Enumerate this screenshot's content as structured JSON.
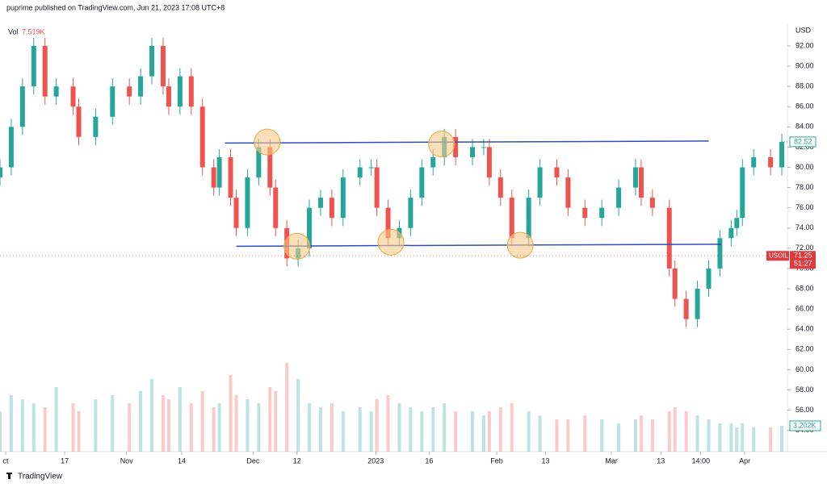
{
  "chart_data": {
    "type": "candlestick",
    "header": "puprime published on TradingView.com, Jun 21, 2023 17:08 UTC+8",
    "currency": "USD",
    "footer": "TradingView",
    "volume_title": "Vol",
    "volume_readout": "7.519K",
    "volume_last_label": "3.202K",
    "x": [
      0,
      2,
      4,
      6,
      8,
      10,
      13,
      14,
      17,
      20,
      23,
      25,
      27,
      29,
      30,
      32,
      34,
      36,
      38,
      39,
      41,
      42,
      44,
      46,
      48,
      49,
      51,
      53,
      55,
      57,
      59,
      61,
      64,
      66,
      67,
      69,
      71,
      73,
      75,
      77,
      79,
      81,
      84,
      86,
      87,
      89,
      91,
      94,
      96,
      99,
      101,
      104,
      107,
      110,
      113,
      114,
      116,
      119,
      120,
      122,
      124,
      126,
      128,
      130,
      131,
      132,
      134,
      137,
      139
    ],
    "open": [
      79,
      80,
      84,
      88,
      92,
      87,
      88,
      86,
      83,
      85,
      88,
      87,
      89,
      92,
      88,
      86,
      89,
      86,
      80,
      78,
      81,
      77,
      74,
      79,
      82,
      78,
      74,
      71,
      72,
      76,
      77,
      75,
      79,
      80,
      80,
      76,
      73,
      74,
      77,
      80,
      81,
      83,
      81,
      82,
      82,
      79,
      77,
      73,
      77,
      80,
      79,
      76,
      75,
      76,
      78,
      80,
      77,
      76,
      70,
      67,
      65,
      68,
      70,
      73,
      74,
      75,
      80,
      81,
      80
    ],
    "high": [
      80.8,
      84.8,
      88.8,
      92.8,
      92.8,
      88.8,
      88.8,
      86.8,
      85.8,
      88.8,
      88.8,
      89.8,
      92.8,
      92.8,
      88.8,
      89.8,
      89.8,
      86.8,
      80.8,
      81.8,
      81.8,
      77.8,
      79.8,
      82.8,
      82.8,
      78.8,
      74.8,
      72.8,
      76.8,
      77.8,
      77.8,
      79.8,
      80.8,
      80.8,
      80.8,
      76.8,
      74.8,
      77.8,
      80.8,
      81.8,
      83.8,
      83.8,
      82.8,
      82.8,
      82.8,
      79.8,
      77.8,
      77.8,
      80.8,
      80.8,
      79.8,
      76.8,
      76.8,
      78.8,
      80.8,
      80.8,
      77.8,
      76.8,
      70.8,
      67.8,
      68.8,
      70.8,
      73.8,
      74.8,
      75.8,
      80.8,
      81.8,
      81.8,
      83.32
    ],
    "low": [
      78.2,
      79.2,
      83.2,
      87.2,
      86.2,
      86.2,
      85.2,
      82.2,
      82.2,
      84.2,
      86.2,
      86.2,
      88.2,
      87.2,
      85.2,
      85.2,
      85.2,
      79.2,
      77.2,
      77.2,
      76.2,
      73.2,
      73.2,
      78.2,
      77.2,
      73.2,
      70.2,
      70.2,
      71.2,
      75.2,
      74.2,
      74.2,
      78.2,
      79.2,
      75.2,
      72.2,
      72.2,
      73.2,
      76.2,
      79.2,
      80.2,
      80.2,
      80.2,
      81.2,
      78.2,
      76.2,
      72.2,
      72.2,
      76.2,
      78.2,
      75.2,
      74.2,
      74.2,
      75.2,
      77.2,
      76.2,
      75.2,
      69.2,
      66.2,
      64.2,
      64.2,
      67.2,
      69.2,
      72.2,
      73.2,
      74.2,
      79.2,
      79.2,
      79.2
    ],
    "close": [
      80,
      84,
      88,
      92,
      87,
      88,
      86,
      83,
      85,
      88,
      87,
      89,
      92,
      88,
      86,
      89,
      86,
      80,
      78,
      81,
      77,
      74,
      79,
      82,
      78,
      74,
      71,
      72,
      76,
      77,
      75,
      79,
      80,
      80,
      76,
      73,
      74,
      77,
      80,
      81,
      83,
      81,
      82,
      82,
      79,
      77,
      73,
      77,
      80,
      79,
      76,
      75,
      76,
      78,
      80,
      77,
      76,
      70,
      67,
      65,
      68,
      70,
      73,
      74,
      75,
      80,
      81,
      80,
      82.52
    ],
    "volume": [
      5000,
      7000,
      6500,
      6000,
      5500,
      8000,
      6000,
      5000,
      6500,
      7000,
      6000,
      7500,
      9000,
      7000,
      6500,
      8000,
      6000,
      7500,
      5500,
      6000,
      9500,
      7000,
      6500,
      6000,
      8000,
      7500,
      11000,
      9000,
      6000,
      5500,
      6000,
      5000,
      5500,
      5000,
      6500,
      7000,
      6000,
      5500,
      5000,
      5500,
      6000,
      5000,
      5000,
      4500,
      5000,
      5500,
      6000,
      5000,
      4500,
      4000,
      4000,
      4500,
      4000,
      3500,
      4000,
      4500,
      4000,
      5000,
      5500,
      5000,
      4500,
      4000,
      3500,
      3500,
      3000,
      3500,
      3000,
      3000,
      3202
    ],
    "vlim": [
      0,
      20000
    ],
    "up_color": "#26a69a",
    "down_color": "#ef5350",
    "xlim": [
      0,
      140
    ],
    "ylim": [
      51.9,
      93.75
    ],
    "xticks": [
      {
        "value": 1,
        "label": "ct"
      },
      {
        "value": 11.5,
        "label": "17"
      },
      {
        "value": 22.5,
        "label": "Nov"
      },
      {
        "value": 32.3,
        "label": "14"
      },
      {
        "value": 45,
        "label": "Dec"
      },
      {
        "value": 52.8,
        "label": "12"
      },
      {
        "value": 66.8,
        "label": "2023"
      },
      {
        "value": 76.3,
        "label": "16"
      },
      {
        "value": 88.3,
        "label": "Feb"
      },
      {
        "value": 97,
        "label": "13"
      },
      {
        "value": 108.7,
        "label": "Mar"
      },
      {
        "value": 117.5,
        "label": "13"
      },
      {
        "value": 124.6,
        "label": "14:00"
      },
      {
        "value": 132.4,
        "label": "Apr"
      }
    ],
    "yticks": [
      {
        "value": 54,
        "label": "54.00"
      },
      {
        "value": 56,
        "label": "56.00"
      },
      {
        "value": 58,
        "label": "58.00"
      },
      {
        "value": 60,
        "label": "60.00"
      },
      {
        "value": 62,
        "label": "62.00"
      },
      {
        "value": 64,
        "label": "64.00"
      },
      {
        "value": 66,
        "label": "66.00"
      },
      {
        "value": 68,
        "label": "68.00"
      },
      {
        "value": 70,
        "label": "70.00"
      },
      {
        "value": 72,
        "label": "72.00"
      },
      {
        "value": 74,
        "label": "74.00"
      },
      {
        "value": 76,
        "label": "76.00"
      },
      {
        "value": 78,
        "label": "78.00"
      },
      {
        "value": 80,
        "label": "80.00"
      },
      {
        "value": 82,
        "label": "82.00"
      },
      {
        "value": 84,
        "label": "84.00"
      },
      {
        "value": 86,
        "label": "86.00"
      },
      {
        "value": 88,
        "label": "88.00"
      },
      {
        "value": 90,
        "label": "90.00"
      },
      {
        "value": 92,
        "label": "92.00"
      }
    ],
    "trend_lines": [
      {
        "x": [
          40,
          126
        ],
        "y": [
          82.4,
          82.6
        ],
        "color": "#2f4fb5"
      },
      {
        "x": [
          42,
          128.2
        ],
        "y": [
          72.2,
          72.4
        ],
        "color": "#2f4fb5"
      }
    ],
    "circles": [
      {
        "x": 47.5,
        "y": 82.5
      },
      {
        "x": 52.8,
        "y": 72.2
      },
      {
        "x": 69.5,
        "y": 72.6
      },
      {
        "x": 78.5,
        "y": 82.3
      },
      {
        "x": 92.5,
        "y": 72.3
      }
    ],
    "marker": {
      "symbol": "USOIL",
      "price": 71.25,
      "countdown": "51:27",
      "color": "#e03a3e"
    }
  }
}
